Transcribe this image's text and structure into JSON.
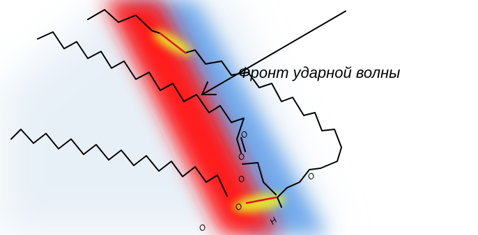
{
  "diagram": {
    "caption": "Фронт ударной волны",
    "atoms": {
      "o1": "O",
      "o2": "O",
      "o3": "O",
      "o4": "O",
      "o5": "O",
      "h1": "H"
    },
    "colors": {
      "front_core": "#ff1a1a",
      "front_halo": "#6aaaf0",
      "ambient": "#dde8f3",
      "highlight": "#e8f02a",
      "broken_bond": "#e0141e",
      "line": "#000000"
    }
  }
}
